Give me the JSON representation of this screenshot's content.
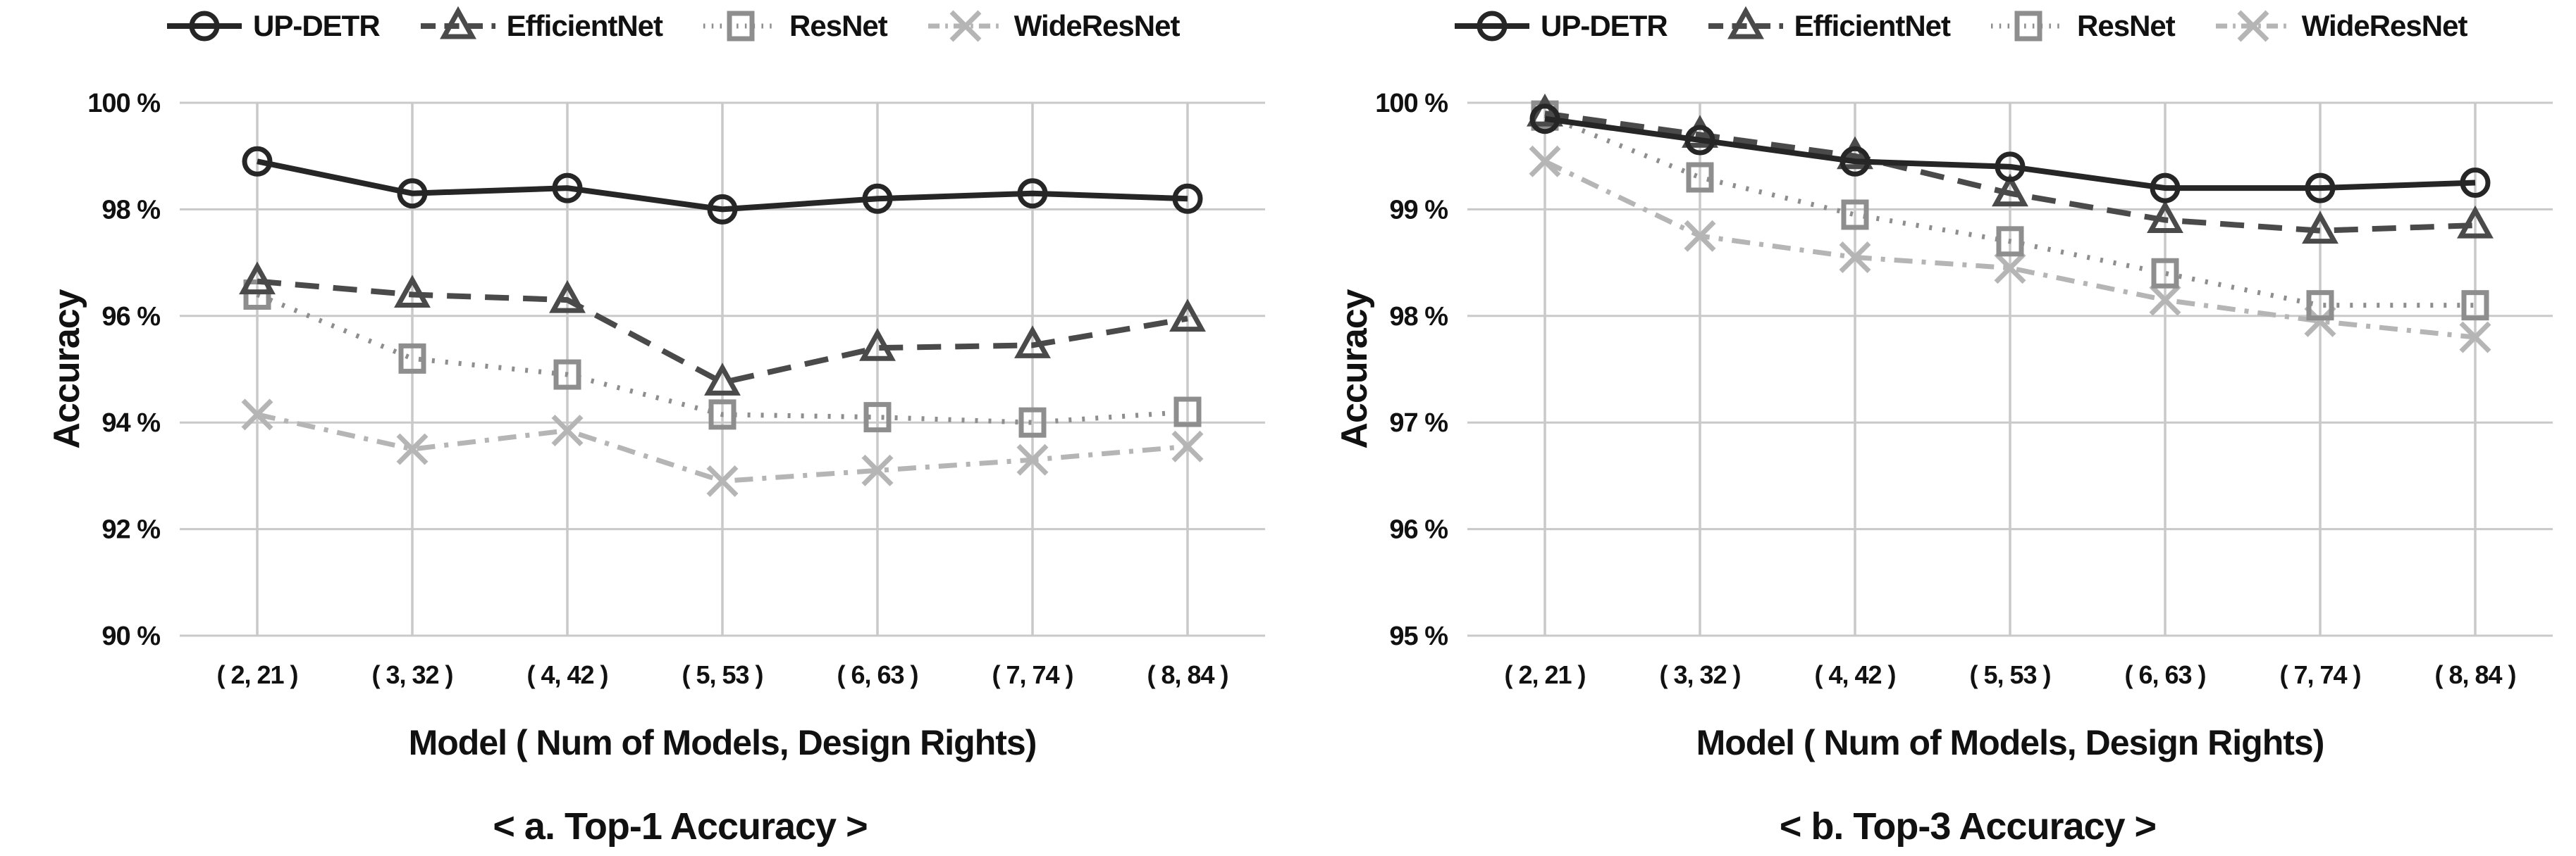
{
  "page": {
    "background": "#ffffff",
    "text_color": "#111111",
    "grid_color": "#c9c9c9"
  },
  "legend": {
    "items": [
      {
        "label": "UP-DETR",
        "marker": "circle",
        "line": "solid",
        "color": "#262626"
      },
      {
        "label": "EfficientNet",
        "marker": "triangle",
        "line": "dashed",
        "color": "#4a4a4a"
      },
      {
        "label": "ResNet",
        "marker": "square",
        "line": "dotted",
        "color": "#8e8e8e"
      },
      {
        "label": "WideResNet",
        "marker": "x",
        "line": "dashdot",
        "color": "#b5b5b5"
      }
    ]
  },
  "chart_data": [
    {
      "type": "line",
      "caption": "< a. Top-1 Accuracy >",
      "xlabel": "Model ( Num of Models, Design Rights)",
      "ylabel": "Accuracy",
      "ylim": [
        90,
        100
      ],
      "yticks": [
        100,
        98,
        96,
        94,
        92,
        90
      ],
      "ytick_labels": [
        "100 %",
        "98 %",
        "96 %",
        "94 %",
        "92 %",
        "90 %"
      ],
      "categories": [
        "( 2, 21 )",
        "( 3, 32 )",
        "( 4, 42 )",
        "( 5, 53 )",
        "( 6, 63 )",
        "( 7, 74 )",
        "( 8, 84 )"
      ],
      "grid": true,
      "legend_position": "top",
      "series": [
        {
          "name": "UP-DETR",
          "values": [
            98.9,
            98.3,
            98.4,
            98.0,
            98.2,
            98.3,
            98.2
          ]
        },
        {
          "name": "EfficientNet",
          "values": [
            96.65,
            96.4,
            96.3,
            94.75,
            95.4,
            95.45,
            95.95
          ]
        },
        {
          "name": "ResNet",
          "values": [
            96.4,
            95.2,
            94.9,
            94.15,
            94.1,
            94.0,
            94.2
          ]
        },
        {
          "name": "WideResNet",
          "values": [
            94.15,
            93.5,
            93.85,
            92.9,
            93.1,
            93.3,
            93.55
          ]
        }
      ]
    },
    {
      "type": "line",
      "caption": "< b. Top-3 Accuracy >",
      "xlabel": "Model ( Num of Models, Design Rights)",
      "ylabel": "Accuracy",
      "ylim": [
        95,
        100
      ],
      "yticks": [
        100,
        99,
        98,
        97,
        96,
        95
      ],
      "ytick_labels": [
        "100 %",
        "99 %",
        "98 %",
        "97 %",
        "96 %",
        "95 %"
      ],
      "categories": [
        "( 2, 21 )",
        "( 3, 32 )",
        "( 4, 42 )",
        "( 5, 53 )",
        "( 6, 63 )",
        "( 7, 74 )",
        "( 8, 84 )"
      ],
      "grid": true,
      "legend_position": "top",
      "series": [
        {
          "name": "UP-DETR",
          "values": [
            99.85,
            99.65,
            99.45,
            99.4,
            99.2,
            99.2,
            99.25
          ]
        },
        {
          "name": "EfficientNet",
          "values": [
            99.9,
            99.7,
            99.5,
            99.15,
            98.9,
            98.8,
            98.85
          ]
        },
        {
          "name": "ResNet",
          "values": [
            99.88,
            99.3,
            98.95,
            98.7,
            98.4,
            98.1,
            98.1
          ]
        },
        {
          "name": "WideResNet",
          "values": [
            99.45,
            98.75,
            98.55,
            98.45,
            98.15,
            97.95,
            97.8
          ]
        }
      ]
    }
  ]
}
